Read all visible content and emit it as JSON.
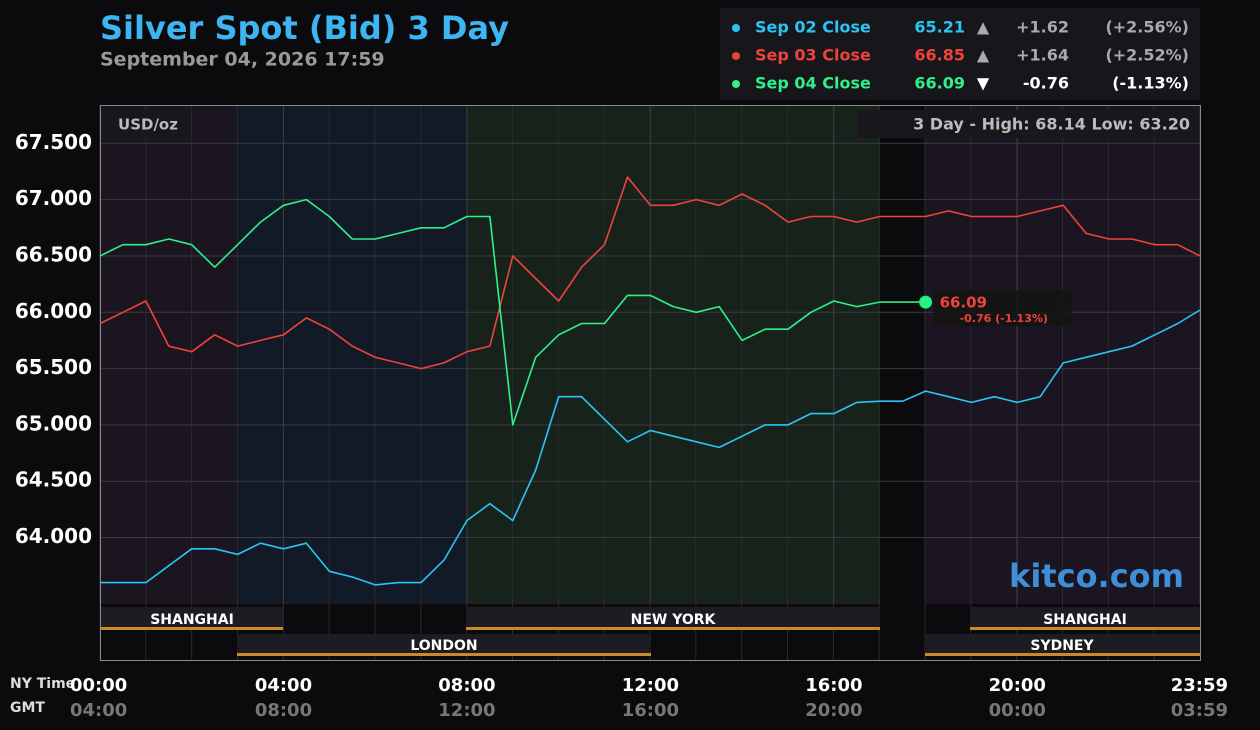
{
  "chart_data": {
    "type": "line",
    "title": "Silver Spot (Bid) 3 Day",
    "subtitle": "September 04, 2026 17:59",
    "unit_label": "USD/oz",
    "high_low": "3 Day - High: 68.14  Low: 63.20",
    "watermark": "kitco.com",
    "x_axis_label": "NY Time",
    "x2_axis_label": "GMT",
    "x": [
      0,
      0.5,
      1,
      1.5,
      2,
      2.5,
      3,
      3.5,
      4,
      4.5,
      5,
      5.5,
      6,
      6.5,
      7,
      7.5,
      8,
      8.5,
      9,
      9.5,
      10,
      10.5,
      11,
      11.5,
      12,
      12.5,
      13,
      13.5,
      14,
      14.5,
      15,
      15.5,
      16,
      16.5,
      17,
      17.5,
      18,
      18.5,
      19,
      19.5,
      20,
      20.5,
      21,
      21.5,
      22,
      22.5,
      23,
      23.5,
      23.983
    ],
    "xlim": [
      0,
      23.983
    ],
    "xticks": [
      {
        "value": 0,
        "label": "00:00"
      },
      {
        "value": 4,
        "label": "04:00"
      },
      {
        "value": 8,
        "label": "08:00"
      },
      {
        "value": 12,
        "label": "12:00"
      },
      {
        "value": 16,
        "label": "16:00"
      },
      {
        "value": 20,
        "label": "20:00"
      },
      {
        "value": 23.983,
        "label": "23:59"
      }
    ],
    "x2tick_labels": [
      "04:00",
      "08:00",
      "12:00",
      "16:00",
      "20:00",
      "00:00",
      "03:59"
    ],
    "ylim": [
      63.41,
      67.84
    ],
    "yticks": [
      {
        "value": 64,
        "label": "64.000"
      },
      {
        "value": 64.5,
        "label": "64.500"
      },
      {
        "value": 65,
        "label": "65.000"
      },
      {
        "value": 65.5,
        "label": "65.500"
      },
      {
        "value": 66,
        "label": "66.000"
      },
      {
        "value": 66.5,
        "label": "66.500"
      },
      {
        "value": 67,
        "label": "67.000"
      },
      {
        "value": 67.5,
        "label": "67.500"
      }
    ],
    "grid": true,
    "sessions": [
      "SHANGHAI",
      "LONDON",
      "NEW YORK",
      "SHANGHAI",
      "SYDNEY"
    ],
    "series": [
      {
        "name": "Sep 02 Close",
        "color": "#29c5f6",
        "close": 65.21,
        "arrow": "▲",
        "change": "+1.62",
        "change_pct": "(+2.56%)",
        "values": [
          63.6,
          63.6,
          63.6,
          63.75,
          63.9,
          63.9,
          63.85,
          63.95,
          63.9,
          63.95,
          63.7,
          63.65,
          63.58,
          63.6,
          63.6,
          63.8,
          64.15,
          64.3,
          64.15,
          64.6,
          65.25,
          65.25,
          65.05,
          64.85,
          64.95,
          64.9,
          64.85,
          64.8,
          64.9,
          65.0,
          65.0,
          65.1,
          65.1,
          65.2,
          65.21,
          65.21,
          65.3,
          65.25,
          65.2,
          65.25,
          65.2,
          65.25,
          65.55,
          65.6,
          65.65,
          65.7,
          65.8,
          65.9,
          66.02
        ]
      },
      {
        "name": "Sep 03 Close",
        "color": "#f0423a",
        "close": 66.85,
        "arrow": "▲",
        "change": "+1.64",
        "change_pct": "(+2.52%)",
        "values": [
          65.9,
          66.0,
          66.1,
          65.7,
          65.65,
          65.8,
          65.7,
          65.75,
          65.8,
          65.95,
          65.85,
          65.7,
          65.6,
          65.55,
          65.5,
          65.55,
          65.65,
          65.7,
          66.5,
          66.3,
          66.1,
          66.4,
          66.6,
          67.2,
          66.95,
          66.95,
          67.0,
          66.95,
          67.05,
          66.95,
          66.8,
          66.85,
          66.85,
          66.8,
          66.85,
          66.85,
          66.85,
          66.9,
          66.85,
          66.85,
          66.85,
          66.9,
          66.95,
          66.7,
          66.65,
          66.65,
          66.6,
          66.6,
          66.5
        ]
      },
      {
        "name": "Sep 04 Close",
        "color": "#2ef08a",
        "close": 66.09,
        "arrow": "▼",
        "change": "-0.76",
        "change_pct": "(-1.13%)",
        "values": [
          66.5,
          66.6,
          66.6,
          66.65,
          66.6,
          66.4,
          66.6,
          66.8,
          66.95,
          67.0,
          66.85,
          66.65,
          66.65,
          66.7,
          66.75,
          66.75,
          66.85,
          66.85,
          65.0,
          65.6,
          65.8,
          65.9,
          65.9,
          66.15,
          66.15,
          66.05,
          66.0,
          66.05,
          65.75,
          65.85,
          65.85,
          66.0,
          66.1,
          66.05,
          66.09,
          66.09,
          66.09,
          null,
          null,
          null,
          null,
          null,
          null,
          null,
          null,
          null,
          null,
          null,
          null
        ]
      }
    ],
    "last_label": {
      "value": 66.09,
      "change": "-0.76 (-1.13%)"
    }
  }
}
